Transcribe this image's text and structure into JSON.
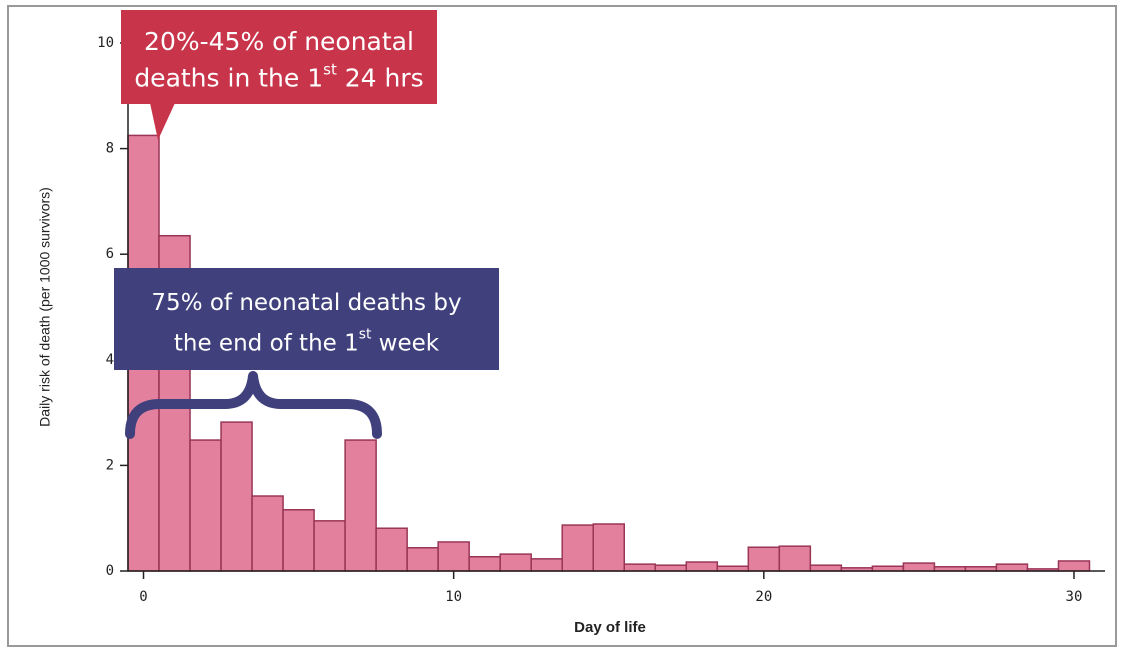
{
  "chart_data": {
    "type": "bar",
    "x_label": "Day of life",
    "y_label": "Daily risk of death (per 1000 survivors)",
    "x": [
      0,
      1,
      2,
      3,
      4,
      5,
      6,
      7,
      8,
      9,
      10,
      11,
      12,
      13,
      14,
      15,
      16,
      17,
      18,
      19,
      20,
      21,
      22,
      23,
      24,
      25,
      26,
      27,
      28,
      29,
      30
    ],
    "values": [
      8.25,
      6.35,
      2.48,
      2.82,
      1.42,
      1.16,
      0.95,
      2.48,
      0.81,
      0.44,
      0.55,
      0.27,
      0.32,
      0.23,
      0.87,
      0.89,
      0.13,
      0.11,
      0.17,
      0.09,
      0.45,
      0.47,
      0.11,
      0.06,
      0.09,
      0.15,
      0.08,
      0.08,
      0.13,
      0.04,
      0.19
    ],
    "color": "#e2809d",
    "xlim": [
      -0.5,
      31
    ],
    "ylim": [
      0,
      10
    ],
    "xticks": [
      0,
      10,
      20,
      30
    ],
    "yticks": [
      0,
      2,
      4,
      6,
      8,
      10
    ],
    "annotations": [
      {
        "line1": "20%-45% of neonatal",
        "line2": "deaths in the 1",
        "sup": "st",
        "line2_end": " 24 hrs",
        "color": "#c8354b"
      },
      {
        "line1": "75% of neonatal deaths by",
        "line2": "the end of the 1",
        "sup": "st",
        "line2_end": " week",
        "color": "#3f407c"
      }
    ]
  }
}
